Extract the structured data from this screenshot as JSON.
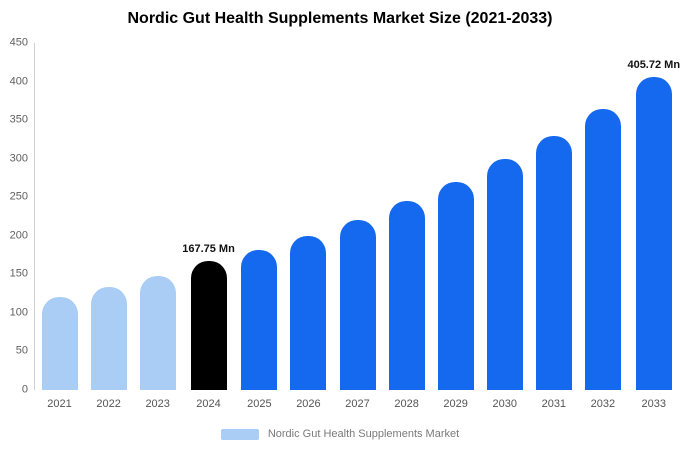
{
  "chart_data": {
    "type": "bar",
    "title": "Nordic Gut Health Supplements Market Size (2021-2033)",
    "xlabel": "",
    "ylabel": "",
    "categories": [
      "2021",
      "2022",
      "2023",
      "2024",
      "2025",
      "2026",
      "2027",
      "2028",
      "2029",
      "2030",
      "2031",
      "2032",
      "2033"
    ],
    "values": [
      120,
      133,
      148,
      167.75,
      181,
      200,
      220,
      245,
      270,
      299,
      329,
      364,
      405.72
    ],
    "bar_colors": [
      "#a9cdf4",
      "#a9cdf4",
      "#a9cdf4",
      "#000000",
      "#1569ef",
      "#1569ef",
      "#1569ef",
      "#1569ef",
      "#1569ef",
      "#1569ef",
      "#1569ef",
      "#1569ef",
      "#1569ef"
    ],
    "annotations": [
      {
        "index": 3,
        "text": "167.75 Mn"
      },
      {
        "index": 12,
        "text": "405.72 Mn"
      }
    ],
    "ylim": [
      0,
      450
    ],
    "yticks": [
      0,
      50,
      100,
      150,
      200,
      250,
      300,
      350,
      400,
      450
    ],
    "grid": "off",
    "legend_position": "bottom",
    "legend": [
      {
        "label": "Nordic Gut Health Supplements Market",
        "color": "#a9cdf4"
      }
    ],
    "colors": {
      "historic_bar": "#a9cdf4",
      "base_year_bar": "#000000",
      "forecast_bar": "#1569ef",
      "axis_text": "#606060"
    }
  }
}
